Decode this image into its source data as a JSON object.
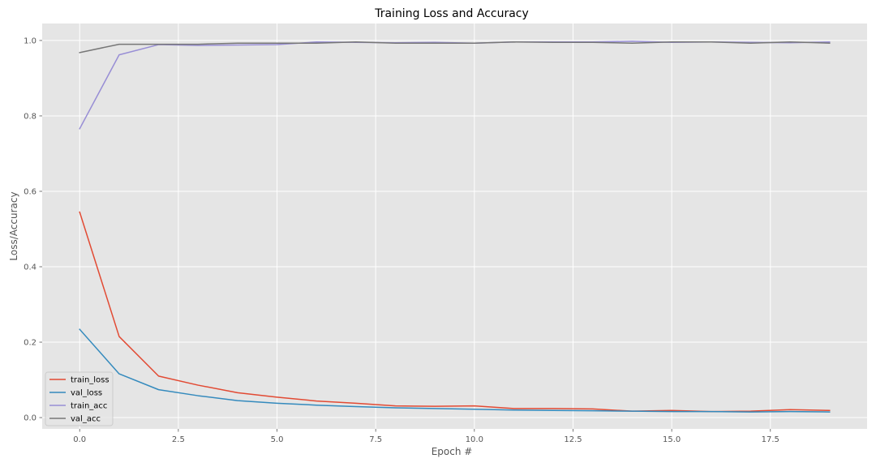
{
  "chart_data": {
    "type": "line",
    "title": "Training Loss and Accuracy",
    "xlabel": "Epoch #",
    "ylabel": "Loss/Accuracy",
    "xlim": [
      -0.95,
      19.95
    ],
    "ylim": [
      -0.03,
      1.045
    ],
    "xticks": [
      0,
      2.5,
      5,
      7.5,
      10,
      12.5,
      15,
      17.5
    ],
    "xtick_labels": [
      "0.0",
      "2.5",
      "5.0",
      "7.5",
      "10.0",
      "12.5",
      "15.0",
      "17.5"
    ],
    "yticks": [
      0,
      0.2,
      0.4,
      0.6,
      0.8,
      1.0
    ],
    "ytick_labels": [
      "0.0",
      "0.2",
      "0.4",
      "0.6",
      "0.8",
      "1.0"
    ],
    "grid": true,
    "legend_position": "lower-left",
    "x": [
      0,
      1,
      2,
      3,
      4,
      5,
      6,
      7,
      8,
      9,
      10,
      11,
      12,
      13,
      14,
      15,
      16,
      17,
      18,
      19
    ],
    "series": [
      {
        "name": "train_loss",
        "color": "#E24A33",
        "values": [
          0.545,
          0.215,
          0.11,
          0.086,
          0.066,
          0.054,
          0.044,
          0.038,
          0.031,
          0.03,
          0.031,
          0.024,
          0.024,
          0.023,
          0.017,
          0.019,
          0.016,
          0.017,
          0.021,
          0.019
        ]
      },
      {
        "name": "val_loss",
        "color": "#348ABD",
        "values": [
          0.234,
          0.116,
          0.074,
          0.058,
          0.045,
          0.038,
          0.033,
          0.029,
          0.026,
          0.024,
          0.022,
          0.02,
          0.019,
          0.018,
          0.017,
          0.016,
          0.016,
          0.015,
          0.016,
          0.015
        ]
      },
      {
        "name": "train_acc",
        "color": "#988ED5",
        "values": [
          0.766,
          0.962,
          0.989,
          0.987,
          0.988,
          0.989,
          0.996,
          0.995,
          0.994,
          0.995,
          0.993,
          0.996,
          0.996,
          0.996,
          0.998,
          0.995,
          0.996,
          0.995,
          0.994,
          0.996
        ]
      },
      {
        "name": "val_acc",
        "color": "#777777",
        "values": [
          0.968,
          0.99,
          0.99,
          0.99,
          0.993,
          0.993,
          0.993,
          0.996,
          0.993,
          0.993,
          0.993,
          0.996,
          0.995,
          0.995,
          0.993,
          0.996,
          0.996,
          0.993,
          0.996,
          0.993
        ]
      }
    ]
  },
  "style": {
    "plot_background": "#E5E5E5",
    "grid_color": "#FFFFFF",
    "legend_background": "#E5E5E5",
    "legend_border": "#CCCCCC"
  }
}
